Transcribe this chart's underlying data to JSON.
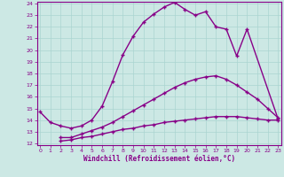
{
  "xlabel": "Windchill (Refroidissement éolien,°C)",
  "bg_color": "#cce8e4",
  "grid_color": "#aad4d0",
  "line_color": "#880088",
  "xmin": 0,
  "xmax": 23,
  "ymin": 12,
  "ymax": 24,
  "xticks": [
    0,
    1,
    2,
    3,
    4,
    5,
    6,
    7,
    8,
    9,
    10,
    11,
    12,
    13,
    14,
    15,
    16,
    17,
    18,
    19,
    20,
    21,
    22,
    23
  ],
  "yticks": [
    12,
    13,
    14,
    15,
    16,
    17,
    18,
    19,
    20,
    21,
    22,
    23,
    24
  ],
  "curve1_x": [
    0,
    1,
    2,
    3,
    4,
    5,
    6,
    7,
    8,
    9,
    10,
    11,
    12,
    13,
    14,
    15,
    16,
    17,
    18,
    19,
    20,
    23
  ],
  "curve1_y": [
    14.7,
    13.8,
    13.5,
    13.3,
    13.5,
    14.0,
    15.2,
    17.3,
    19.6,
    21.2,
    22.4,
    23.1,
    23.7,
    24.1,
    23.5,
    23.0,
    23.3,
    22.0,
    21.8,
    19.5,
    21.8,
    14.1
  ],
  "curve2_x": [
    2,
    3,
    4,
    5,
    6,
    7,
    8,
    9,
    10,
    11,
    12,
    13,
    14,
    15,
    16,
    17,
    18,
    19,
    20,
    21,
    22,
    23
  ],
  "curve2_y": [
    12.5,
    12.5,
    12.8,
    13.1,
    13.4,
    13.8,
    14.3,
    14.8,
    15.3,
    15.8,
    16.3,
    16.8,
    17.2,
    17.5,
    17.7,
    17.8,
    17.5,
    17.0,
    16.4,
    15.8,
    15.0,
    14.2
  ],
  "curve3_x": [
    2,
    3,
    4,
    5,
    6,
    7,
    8,
    9,
    10,
    11,
    12,
    13,
    14,
    15,
    16,
    17,
    18,
    19,
    20,
    21,
    22,
    23
  ],
  "curve3_y": [
    12.2,
    12.3,
    12.5,
    12.6,
    12.8,
    13.0,
    13.2,
    13.3,
    13.5,
    13.6,
    13.8,
    13.9,
    14.0,
    14.1,
    14.2,
    14.3,
    14.3,
    14.3,
    14.2,
    14.1,
    14.0,
    14.0
  ]
}
